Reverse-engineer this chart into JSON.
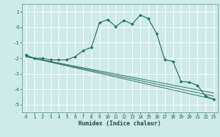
{
  "xlabel": "Humidex (Indice chaleur)",
  "ylabel": "",
  "background_color": "#ceeaea",
  "grid_color": "#ffffff",
  "line_color": "#2a6e65",
  "xlim": [
    -0.5,
    23.5
  ],
  "ylim": [
    -5.5,
    1.5
  ],
  "yticks": [
    1,
    0,
    -1,
    -2,
    -3,
    -4,
    -5
  ],
  "xticks": [
    0,
    1,
    2,
    3,
    4,
    5,
    6,
    7,
    8,
    9,
    10,
    11,
    12,
    13,
    14,
    15,
    16,
    17,
    18,
    19,
    20,
    21,
    22,
    23
  ],
  "series": [
    {
      "x": [
        0,
        1,
        2,
        3,
        4,
        5,
        6,
        7,
        8,
        9,
        10,
        11,
        12,
        13,
        14,
        15,
        16,
        17,
        18,
        19,
        20,
        21,
        22,
        23
      ],
      "y": [
        -1.8,
        -2.0,
        -2.0,
        -2.1,
        -2.1,
        -2.1,
        -1.9,
        -1.5,
        -1.3,
        0.3,
        0.5,
        0.05,
        0.45,
        0.2,
        0.8,
        0.55,
        -0.4,
        -2.1,
        -2.2,
        -3.5,
        -3.55,
        -3.75,
        -4.45,
        -4.65
      ],
      "marker": true
    },
    {
      "x": [
        0,
        23
      ],
      "y": [
        -1.9,
        -4.25
      ],
      "marker": false
    },
    {
      "x": [
        0,
        23
      ],
      "y": [
        -1.9,
        -4.45
      ],
      "marker": false
    },
    {
      "x": [
        0,
        23
      ],
      "y": [
        -1.9,
        -4.65
      ],
      "marker": false
    }
  ]
}
